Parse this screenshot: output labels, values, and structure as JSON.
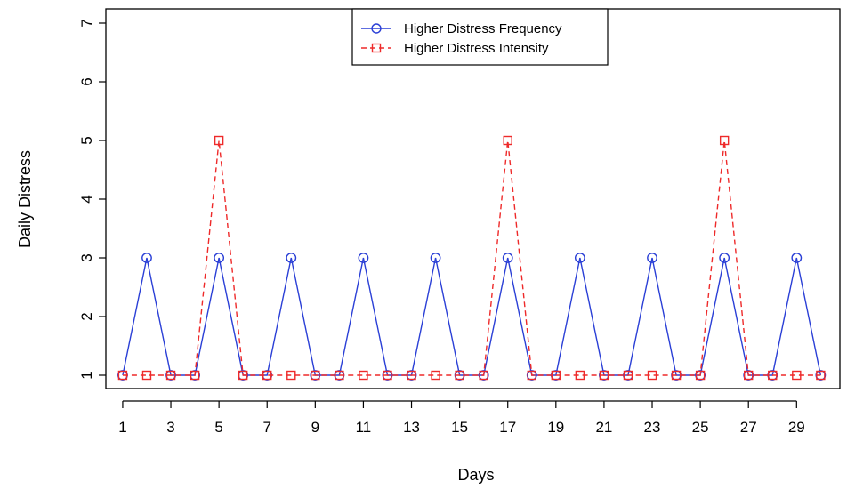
{
  "chart_data": {
    "type": "line",
    "title": "",
    "xlabel": "Days",
    "ylabel": "Daily Distress",
    "x": [
      1,
      2,
      3,
      4,
      5,
      6,
      7,
      8,
      9,
      10,
      11,
      12,
      13,
      14,
      15,
      16,
      17,
      18,
      19,
      20,
      21,
      22,
      23,
      24,
      25,
      26,
      27,
      28,
      29,
      30
    ],
    "xlim": [
      0.3,
      30.8
    ],
    "ylim": [
      1,
      7
    ],
    "x_ticks": [
      1,
      3,
      5,
      7,
      9,
      11,
      13,
      15,
      17,
      19,
      21,
      23,
      25,
      27,
      29
    ],
    "y_ticks": [
      1,
      2,
      3,
      4,
      5,
      6,
      7
    ],
    "grid": false,
    "legend_position": "top-center",
    "series": [
      {
        "name": "Higher Distress Frequency",
        "color": "#2a3fd6",
        "line_style": "solid",
        "marker": "circle",
        "values": [
          1,
          3,
          1,
          1,
          3,
          1,
          1,
          3,
          1,
          1,
          3,
          1,
          1,
          3,
          1,
          1,
          3,
          1,
          1,
          3,
          1,
          1,
          3,
          1,
          1,
          3,
          1,
          1,
          3,
          1
        ]
      },
      {
        "name": "Higher Distress Intensity",
        "color": "#ee2a2a",
        "line_style": "dashed",
        "marker": "square",
        "values": [
          1,
          1,
          1,
          1,
          5,
          1,
          1,
          1,
          1,
          1,
          1,
          1,
          1,
          1,
          1,
          1,
          5,
          1,
          1,
          1,
          1,
          1,
          1,
          1,
          1,
          5,
          1,
          1,
          1,
          1
        ]
      }
    ]
  }
}
